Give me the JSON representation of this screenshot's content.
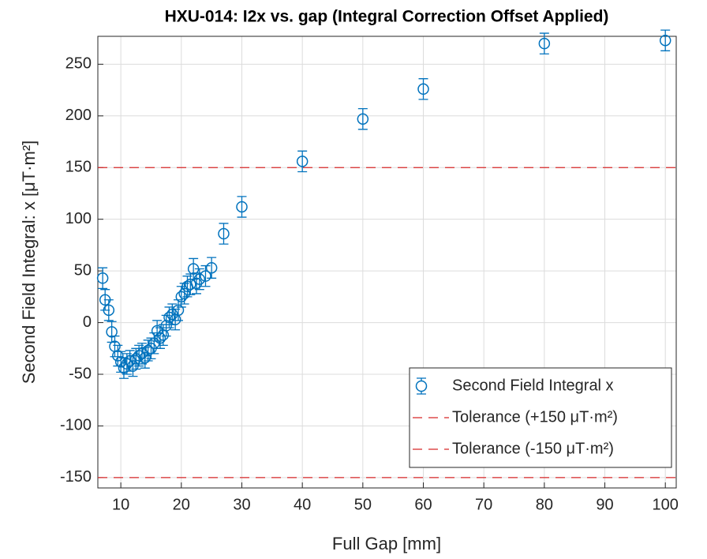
{
  "chart_data": {
    "type": "errorbar",
    "title": "HXU-014: I2x vs. gap (Integral Correction Offset Applied)",
    "x_label": "Full Gap [mm]",
    "y_label": "Second Field Integral: x [μT·m²]",
    "xlim": [
      6.2,
      101.8
    ],
    "xticks": [
      10,
      20,
      30,
      40,
      50,
      60,
      70,
      80,
      90,
      100
    ],
    "ylim": [
      -160,
      277
    ],
    "yticks": [
      -150,
      -100,
      -50,
      0,
      50,
      100,
      150,
      200,
      250
    ],
    "grid": true,
    "legend": "lower right",
    "series": [
      {
        "name": "Second Field Integral x",
        "color": "#0072bd",
        "x": [
          7,
          7.4,
          8,
          8.5,
          9,
          9.5,
          10,
          10.5,
          11,
          11.5,
          12,
          12.5,
          13,
          13.5,
          14,
          14.5,
          15,
          15.5,
          16,
          16.5,
          17,
          17.5,
          18,
          18.5,
          19,
          19.5,
          20,
          20.5,
          21,
          21.5,
          22,
          22.5,
          23,
          24,
          25,
          27,
          30,
          40,
          50,
          60,
          80,
          100
        ],
        "values": [
          43,
          22,
          12,
          -9,
          -23,
          -32,
          -38,
          -44,
          -40,
          -37,
          -42,
          -35,
          -32,
          -30,
          -34,
          -27,
          -25,
          -20,
          -8,
          -15,
          -12,
          -3,
          5,
          8,
          3,
          12,
          25,
          28,
          35,
          37,
          52,
          38,
          42,
          45,
          53,
          86,
          112,
          156,
          197,
          226,
          270,
          273
        ],
        "errors": [
          10,
          10,
          10,
          10,
          10,
          10,
          10,
          10,
          10,
          10,
          10,
          10,
          10,
          10,
          10,
          10,
          10,
          10,
          10,
          10,
          10,
          10,
          10,
          10,
          10,
          10,
          10,
          10,
          10,
          10,
          10,
          10,
          10,
          10,
          10,
          10,
          10,
          10,
          10,
          10,
          10,
          10
        ]
      }
    ],
    "reference_lines": [
      {
        "name": "Tolerance (+150 μT·m²)",
        "value": 150,
        "color": "#d62728"
      },
      {
        "name": "Tolerance (-150 μT·m²)",
        "value": -150,
        "color": "#d62728"
      }
    ]
  }
}
